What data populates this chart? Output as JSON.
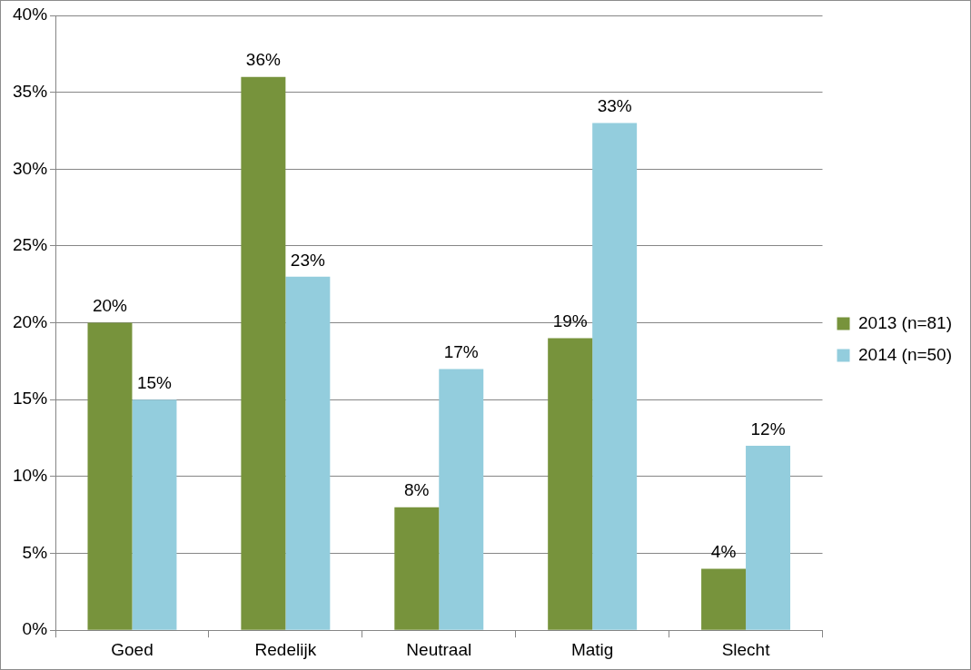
{
  "chart_data": {
    "type": "bar",
    "categories": [
      "Goed",
      "Redelijk",
      "Neutraal",
      "Matig",
      "Slecht"
    ],
    "series": [
      {
        "name": "2013 (n=81)",
        "color": "#77933c",
        "values": [
          20,
          36,
          8,
          19,
          4
        ],
        "value_labels": [
          "20%",
          "36%",
          "8%",
          "19%",
          "4%"
        ]
      },
      {
        "name": "2014 (n=50)",
        "color": "#93cddd",
        "values": [
          15,
          23,
          17,
          33,
          12
        ],
        "value_labels": [
          "15%",
          "23%",
          "17%",
          "33%",
          "12%"
        ]
      }
    ],
    "ylim": [
      0,
      40
    ],
    "yticks": [
      {
        "value": 0,
        "label": "0%"
      },
      {
        "value": 5,
        "label": "5%"
      },
      {
        "value": 10,
        "label": "10%"
      },
      {
        "value": 15,
        "label": "15%"
      },
      {
        "value": 20,
        "label": "20%"
      },
      {
        "value": 25,
        "label": "25%"
      },
      {
        "value": 30,
        "label": "30%"
      },
      {
        "value": 35,
        "label": "35%"
      },
      {
        "value": 40,
        "label": "40%"
      }
    ],
    "grid": "y",
    "legend": "right"
  }
}
